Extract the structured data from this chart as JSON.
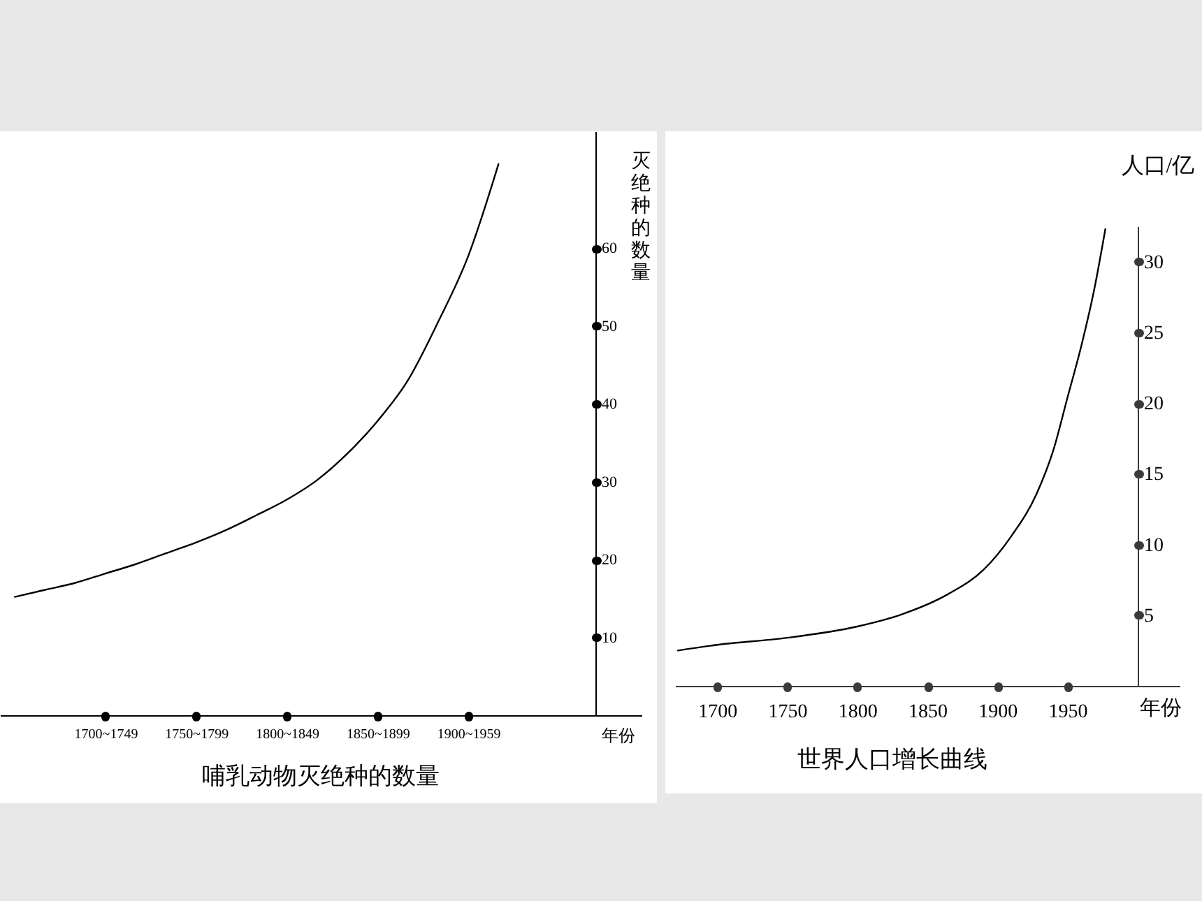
{
  "chart_data": [
    {
      "type": "line",
      "title": "哺乳动物灭绝种的数量",
      "xlabel": "年份",
      "ylabel": "灭绝种的数量",
      "color": "#000000",
      "categories": [
        null,
        null,
        null,
        "1700~1749",
        null,
        null,
        "1750~1799",
        null,
        null,
        "1800~1849",
        null,
        null,
        "1850~1899",
        null,
        null,
        "1900~1959",
        null
      ],
      "values": [
        15.2,
        16.1,
        17.0,
        18.2,
        19.4,
        20.8,
        22.2,
        23.8,
        25.7,
        27.7,
        30.2,
        33.6,
        37.8,
        43.0,
        50.5,
        59,
        70.8
      ],
      "ylim": [
        0,
        75
      ],
      "yticks": [
        10,
        20,
        30,
        40,
        50,
        60
      ],
      "grid": false
    },
    {
      "type": "line",
      "title": "世界人口增长曲线",
      "xlabel": "年份",
      "ylabel": "人口/亿",
      "color": "#000000",
      "x": [
        1672,
        1700,
        1750,
        1800,
        1830,
        1865,
        1890,
        1910,
        1928,
        1940,
        1950,
        1960,
        1969,
        1977
      ],
      "values": [
        2.5,
        2.9,
        3.4,
        4.2,
        5.0,
        6.5,
        8.2,
        10.6,
        13.6,
        16.7,
        20.4,
        24.1,
        28.0,
        32.3
      ],
      "xlim": [
        1670,
        2030
      ],
      "xticks": [
        1700,
        1750,
        1800,
        1850,
        1900,
        1950
      ],
      "ylim": [
        0,
        32.5
      ],
      "yticks": [
        5,
        10,
        15,
        20,
        25,
        30
      ],
      "grid": false
    }
  ]
}
